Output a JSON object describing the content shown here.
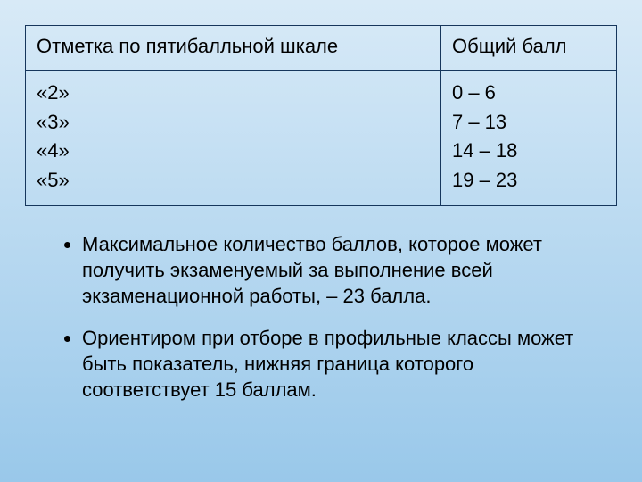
{
  "table": {
    "headers": {
      "col1": "Отметка по пятибалльной шкале",
      "col2": "Общий балл"
    },
    "grades": [
      "«2»",
      "«3»",
      "«4»",
      "«5»"
    ],
    "ranges": [
      "0 – 6",
      "7 – 13",
      "14 – 18",
      "19 – 23"
    ]
  },
  "bullets": [
    "Максимальное количество баллов, которое может получить экзаменуемый за выполнение всей экзаменационной работы, – 23 балла.",
    "Ориентиром при отборе в профильные классы может быть показатель, нижняя граница которого соответствует 15 баллам."
  ],
  "style": {
    "border_color": "#16365c",
    "bg_gradient_top": "#d8eaf7",
    "bg_gradient_bottom": "#99c8ea",
    "font_size_pt": 16
  }
}
